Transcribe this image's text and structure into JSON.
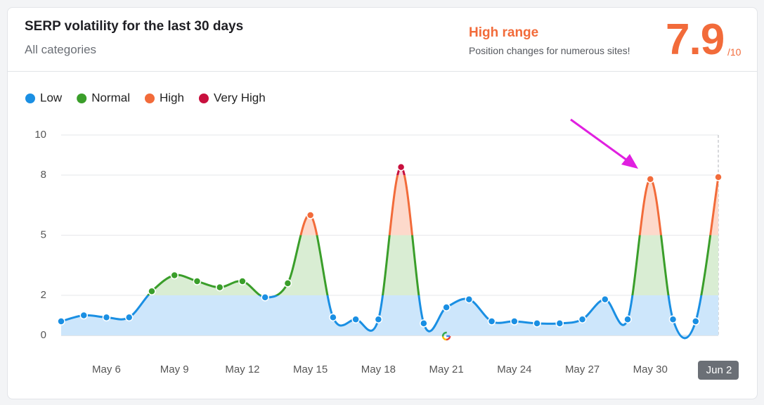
{
  "header": {
    "title": "SERP volatility for the last 30 days",
    "subtitle": "All categories",
    "status": "High range",
    "status_note": "Position changes for numerous sites!",
    "score": 7.9,
    "score_scale": "/10"
  },
  "chart_data": {
    "type": "line",
    "categories": [
      null,
      null,
      "May 6",
      null,
      null,
      "May 9",
      null,
      null,
      "May 12",
      null,
      null,
      "May 15",
      null,
      null,
      "May 18",
      null,
      null,
      "May 21",
      null,
      null,
      "May 24",
      null,
      null,
      "May 27",
      null,
      null,
      "May 30",
      null,
      null,
      "Jun 2"
    ],
    "values": [
      0.7,
      1.0,
      0.9,
      0.9,
      2.2,
      3.0,
      2.7,
      2.4,
      2.7,
      1.9,
      2.6,
      6.0,
      0.9,
      0.8,
      0.8,
      8.4,
      0.6,
      1.4,
      1.8,
      0.7,
      0.7,
      0.6,
      0.6,
      0.8,
      1.8,
      0.8,
      7.8,
      0.8,
      0.7,
      7.9
    ],
    "ylim": [
      0,
      10
    ],
    "yticks": [
      0,
      2,
      5,
      8,
      10
    ],
    "grid": true,
    "bands": [
      {
        "name": "Low",
        "color": "#1a8fe3",
        "fill": "#cde6fb",
        "from": 0,
        "to": 2
      },
      {
        "name": "Normal",
        "color": "#3a9e2a",
        "fill": "#d9edd3",
        "from": 2,
        "to": 5
      },
      {
        "name": "High",
        "color": "#f26b3a",
        "fill": "#fdd9cb",
        "from": 5,
        "to": 8
      },
      {
        "name": "Very High",
        "color": "#c8103e",
        "fill": "#f9d0d9",
        "from": 8,
        "to": 10
      }
    ]
  }
}
